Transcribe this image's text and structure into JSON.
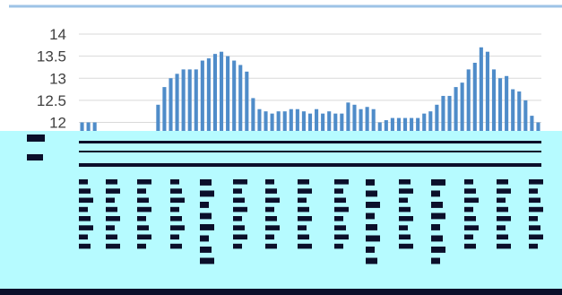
{
  "colors": {
    "bar": "#4f8cc9",
    "grid": "#d9d9d9",
    "top_border": "#9dc3e6",
    "glitch_band": "#b6fbff",
    "glitch_dark": "#0b0f2a",
    "axis_text": "#404040",
    "bottom_border": "#0b0f2a"
  },
  "chart_data": {
    "type": "bar",
    "title": "",
    "xlabel": "",
    "ylabel": "",
    "ylim": [
      11.4,
      14.0
    ],
    "yticks": [
      "14",
      "13.5",
      "13",
      "12.5",
      "12"
    ],
    "ytick_values": [
      14,
      13.5,
      13,
      12.5,
      12
    ],
    "grid": true,
    "legend": "none",
    "series": [
      {
        "values": [
          12.0,
          12.0,
          12.0,
          11.4,
          11.4,
          11.4,
          11.4,
          11.4,
          11.4,
          11.4,
          11.4,
          11.4,
          12.4,
          12.8,
          13.0,
          13.1,
          13.2,
          13.2,
          13.2,
          13.4,
          13.45,
          13.55,
          13.6,
          13.5,
          13.4,
          13.3,
          13.15,
          12.55,
          12.3,
          12.25,
          12.2,
          12.25,
          12.25,
          12.3,
          12.3,
          12.25,
          12.2,
          12.3,
          12.2,
          12.25,
          12.2,
          12.2,
          12.45,
          12.4,
          12.3,
          12.35,
          12.3,
          12.0,
          12.05,
          12.1,
          12.1,
          12.1,
          12.1,
          12.1,
          12.2,
          12.25,
          12.4,
          12.6,
          12.6,
          12.8,
          12.9,
          13.2,
          13.35,
          13.7,
          13.6,
          13.2,
          13.0,
          13.05,
          12.75,
          12.7,
          12.5,
          12.15,
          12.0
        ]
      }
    ]
  }
}
